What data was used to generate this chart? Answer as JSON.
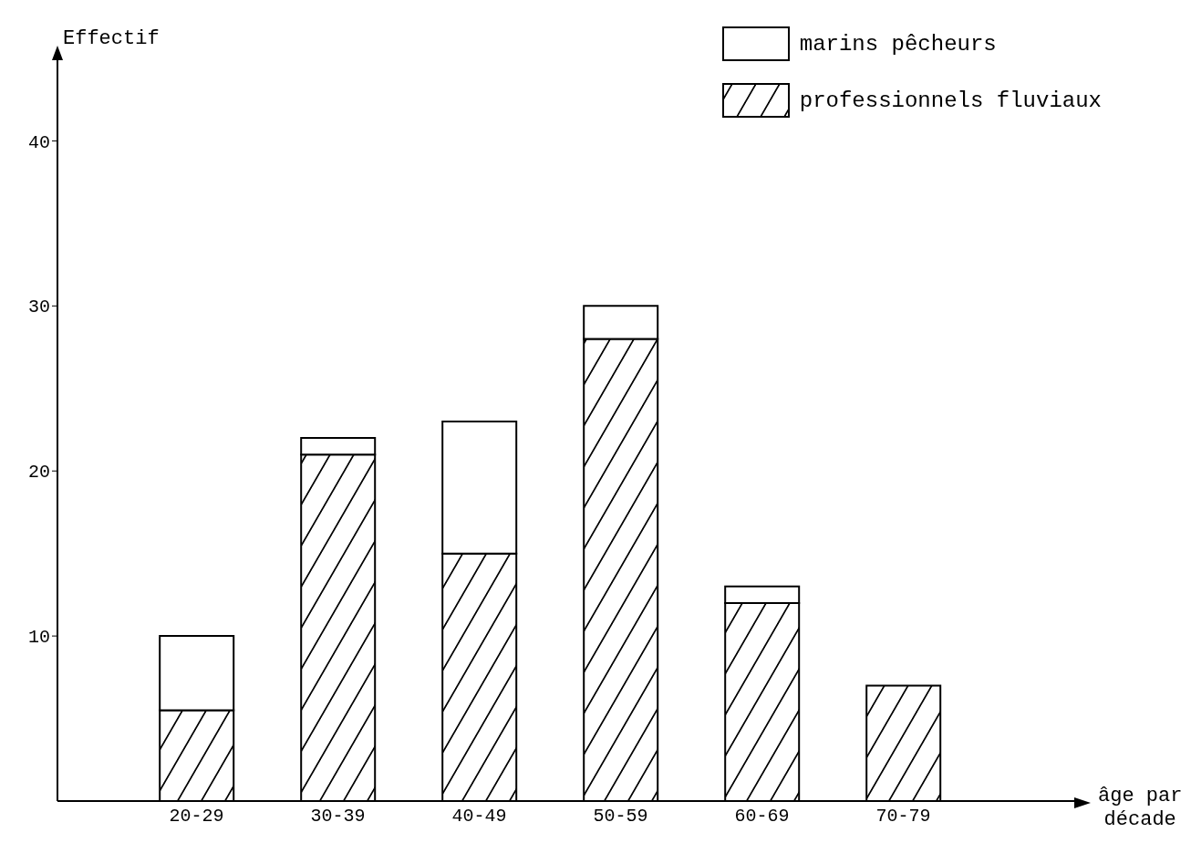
{
  "chart_data": {
    "type": "bar",
    "stacked": true,
    "ylabel": "Effectif",
    "xlabel": "âge par\ndécade",
    "categories": [
      "20-29",
      "30-39",
      "40-49",
      "50-59",
      "60-69",
      "70-79"
    ],
    "series": [
      {
        "name": "professionnels fluviaux",
        "color": "#000000",
        "values": [
          5.5,
          21,
          15,
          28,
          12,
          7
        ]
      },
      {
        "name": "marins pêcheurs",
        "color": "#ffffff",
        "values": [
          4.5,
          1,
          8,
          2,
          1,
          0
        ]
      }
    ],
    "ylim": [
      0,
      45
    ],
    "yticks": [
      10,
      20,
      30,
      40
    ],
    "legend": "top right"
  }
}
